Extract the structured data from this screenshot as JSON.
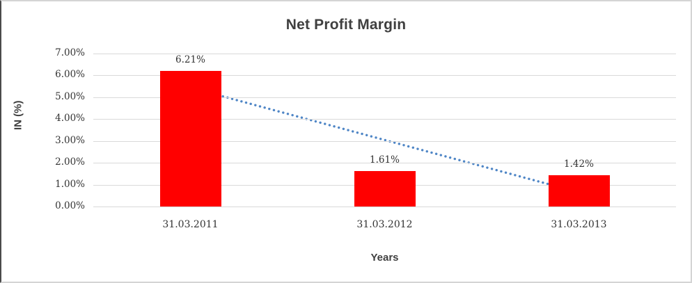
{
  "chart_data": {
    "type": "bar",
    "title": "Net Profit Margin",
    "xlabel": "Years",
    "ylabel": "IN (%)",
    "categories": [
      "31.03.2011",
      "31.03.2012",
      "31.03.2013"
    ],
    "values": [
      6.21,
      1.61,
      1.42
    ],
    "data_labels": [
      "6.21%",
      "1.61%",
      "1.42%"
    ],
    "y_ticks": [
      "7.00%",
      "6.00%",
      "5.00%",
      "4.00%",
      "3.00%",
      "2.00%",
      "1.00%",
      "0.00%"
    ],
    "ylim": [
      0,
      7
    ],
    "grid": true,
    "legend": "none",
    "bar_color": "#ff0000",
    "gridline_color": "#d9d9d9",
    "text_color": "#3f3f3f",
    "trendline": {
      "type": "linear",
      "style": "dotted",
      "color": "#4f86c6",
      "start_value": 5.44,
      "end_value": 0.65
    }
  }
}
